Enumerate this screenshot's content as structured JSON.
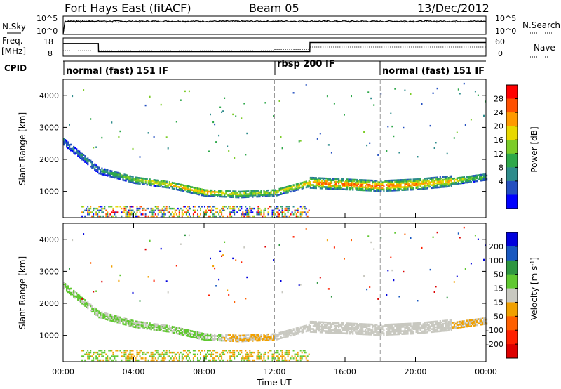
{
  "header": {
    "station": "Fort Hays East (fitACF)",
    "beam": "Beam 05",
    "date": "13/Dec/2012"
  },
  "noise_panel": {
    "left_label": "N.Sky",
    "left_ticks": [
      "10^5",
      "10^0"
    ],
    "right_ticks": [
      "10^5",
      "10^0"
    ],
    "right_label": "N.Search"
  },
  "freq_panel": {
    "left_label_1": "Freq.",
    "left_label_2": "[MHz]",
    "left_ticks": [
      "18",
      "8"
    ],
    "right_ticks": [
      "60",
      "0"
    ],
    "right_label": "Nave"
  },
  "cpid_panel": {
    "label": "CPID",
    "modes": [
      {
        "text": "normal (fast) 151 IF",
        "start_h": 0
      },
      {
        "text": "rbsp 200 IF",
        "start_h": 12
      },
      {
        "text": "normal (fast) 151 IF",
        "start_h": 18
      }
    ]
  },
  "chart_data": [
    {
      "type": "line",
      "title": "N.Sky / N.Search",
      "x": [
        0,
        0.1,
        1,
        2,
        4,
        6,
        8,
        10,
        12,
        14,
        16,
        18,
        20,
        22,
        24
      ],
      "series": [
        {
          "name": "N.Sky",
          "values": [
            1,
            4200,
            4100,
            4300,
            4000,
            4100,
            4200,
            4000,
            4150,
            4250,
            4100,
            4000,
            4200,
            4100,
            4000
          ]
        },
        {
          "name": "N.Search",
          "values": [
            1,
            3200,
            3000,
            3100,
            3000,
            3100,
            3000,
            3050,
            3100,
            3200,
            3100,
            3050,
            3000,
            3100,
            3050
          ]
        }
      ],
      "ylim": [
        1,
        100000
      ],
      "yscale": "log"
    },
    {
      "type": "line",
      "title": "Freq. / Nave",
      "x": [
        0,
        2,
        2.01,
        12,
        12.01,
        14,
        14.01,
        24
      ],
      "series": [
        {
          "name": "Freq. [MHz]",
          "values": [
            15,
            15,
            10.5,
            10.5,
            10.5,
            10.5,
            15.5,
            15.5
          ]
        },
        {
          "name": "Nave",
          "values": [
            18,
            18,
            18,
            18,
            22,
            22,
            30,
            30
          ]
        }
      ],
      "freq_ylim": [
        8,
        18
      ],
      "nave_ylim": [
        0,
        60
      ]
    },
    {
      "type": "heatmap",
      "title": "Power [dB]",
      "x_label": "",
      "ylabel": "Slant Range [km]",
      "xlim": [
        0,
        24
      ],
      "ylim": [
        180,
        4500
      ],
      "y_ticks": [
        1000,
        2000,
        3000,
        4000
      ],
      "colorbar": {
        "label": "Power [dB]",
        "ticks": [
          "28",
          "24",
          "20",
          "16",
          "12",
          "8",
          "4"
        ],
        "colors": [
          "#ff0000",
          "#ff5000",
          "#ff9a00",
          "#e8d800",
          "#7ccc28",
          "#2ea84a",
          "#2e8c8c",
          "#2450c0",
          "#0000ff"
        ]
      },
      "features": [
        {
          "desc": "main band",
          "x": [
            0,
            2,
            4,
            6,
            8,
            10,
            12,
            14,
            16,
            18,
            20,
            22,
            24
          ],
          "range": [
            2600,
            1700,
            1400,
            1250,
            1000,
            950,
            1000,
            1300,
            1250,
            1200,
            1250,
            1350,
            1500
          ],
          "power": [
            8,
            10,
            18,
            22,
            24,
            20,
            18,
            26,
            28,
            28,
            26,
            22,
            14
          ]
        }
      ]
    },
    {
      "type": "heatmap",
      "title": "Velocity [m s-1]",
      "x_label": "Time UT",
      "ylabel": "Slant Range [km]",
      "xlim": [
        0,
        24
      ],
      "ylim": [
        180,
        4500
      ],
      "y_ticks": [
        1000,
        2000,
        3000,
        4000
      ],
      "x_ticks": [
        "00:00",
        "04:00",
        "08:00",
        "12:00",
        "16:00",
        "20:00",
        "00:00"
      ],
      "colorbar": {
        "label": "Velocity [m s-1]",
        "ticks": [
          "200",
          "100",
          "50",
          "15",
          "-15",
          "-50",
          "-100",
          "-200"
        ],
        "colors": [
          "#0000dd",
          "#1858c0",
          "#2e9640",
          "#60c830",
          "#c8c8c0",
          "#f0a000",
          "#ff6000",
          "#ff2000",
          "#dd0000"
        ]
      }
    }
  ],
  "dashed_markers_h": [
    12,
    18
  ],
  "axis": {
    "xlabel": "Time UT",
    "ylabel": "Slant Range [km]",
    "power_label": "Power [dB]",
    "velocity_label": "Velocity [m s",
    "velocity_sup": "-1",
    "velocity_close": "]"
  }
}
